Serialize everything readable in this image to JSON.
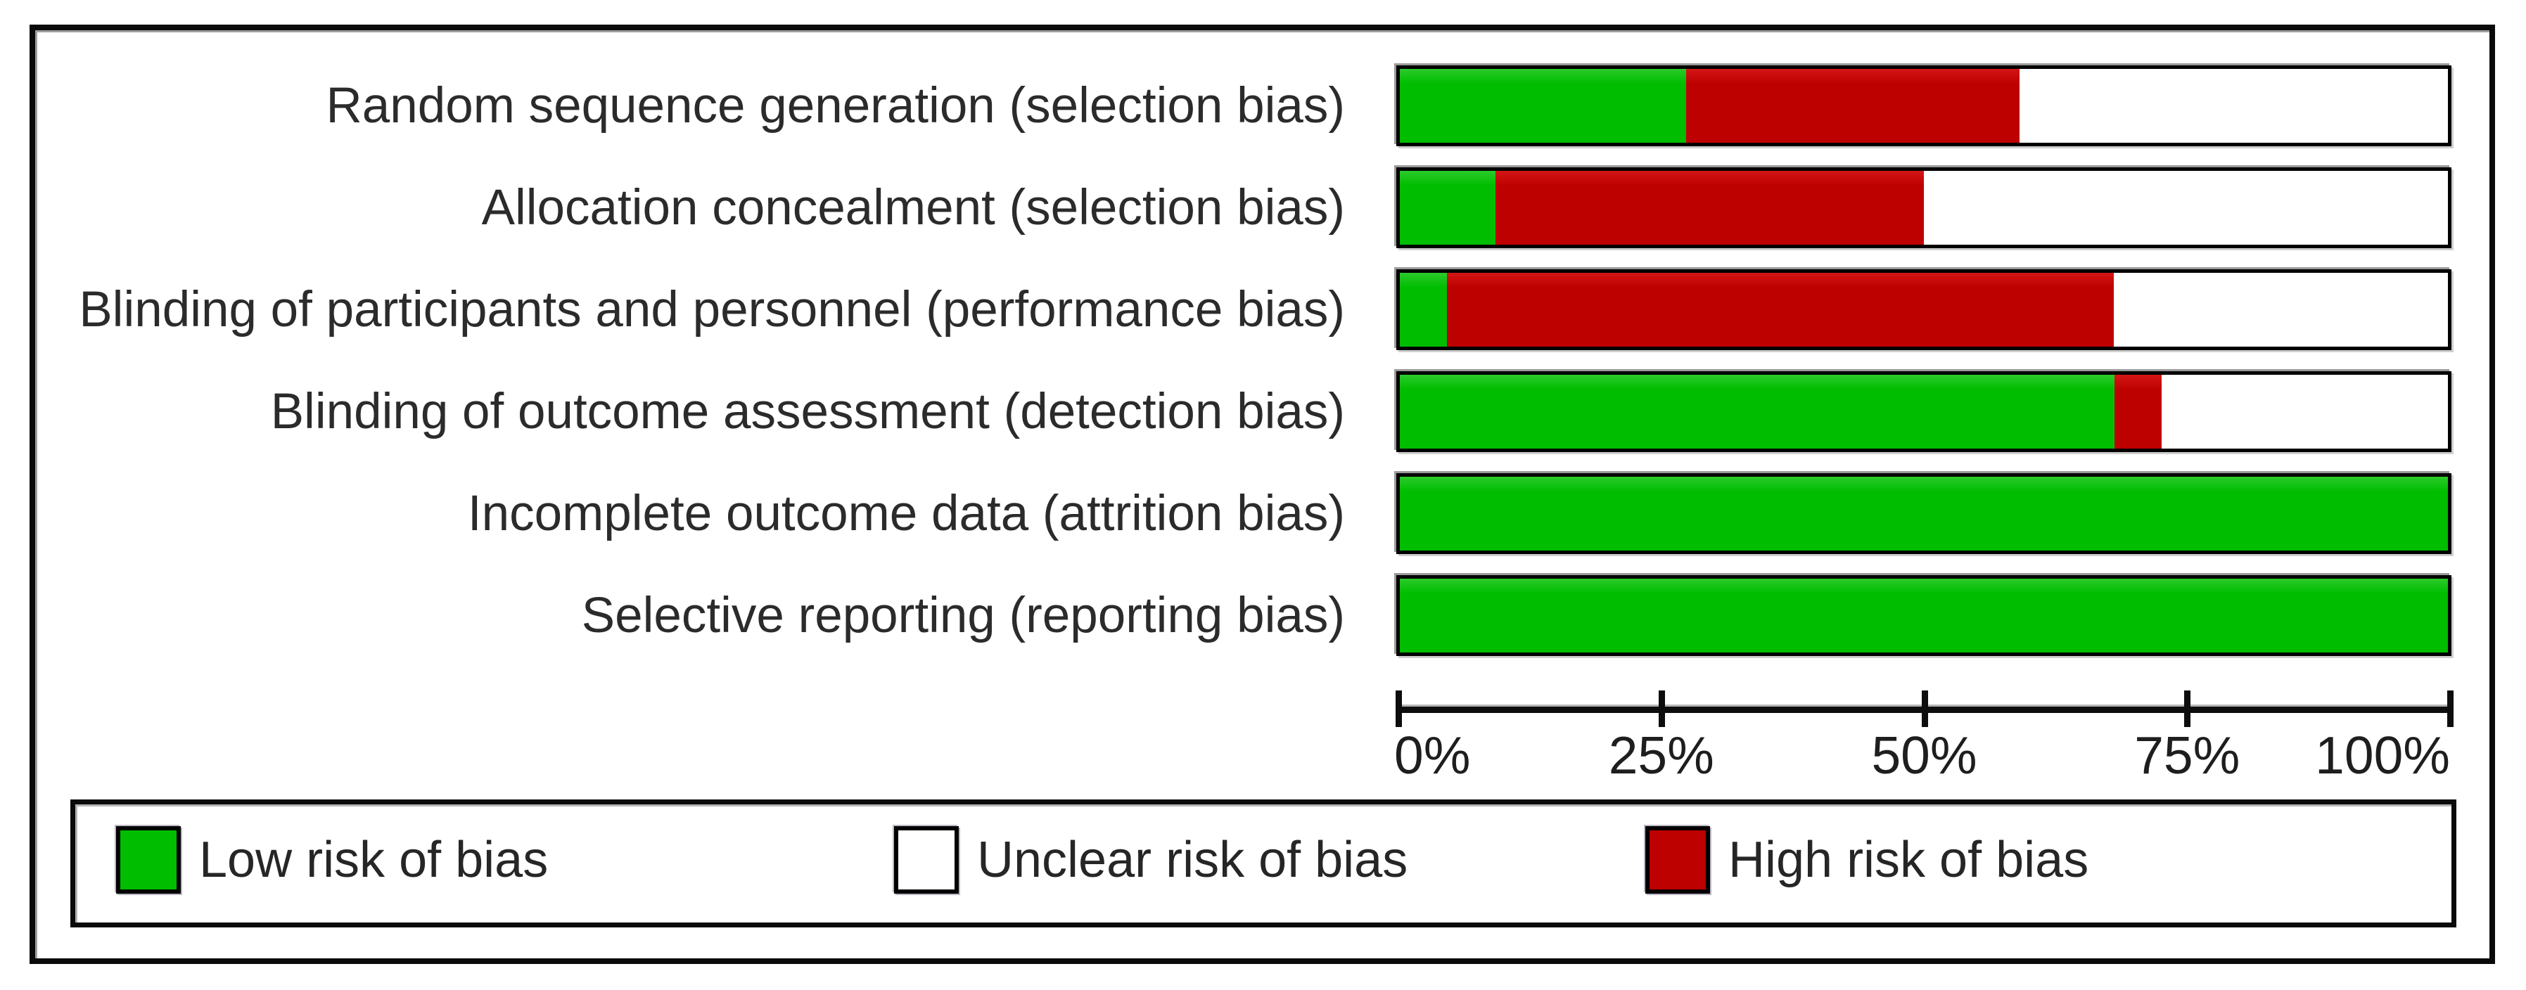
{
  "chart_data": {
    "type": "bar",
    "subtype": "horizontal-stacked-percentage",
    "title": "",
    "categories": [
      "Random sequence generation (selection bias)",
      "Allocation concealment (selection bias)",
      "Blinding of participants and personnel (performance bias)",
      "Blinding of outcome assessment (detection bias)",
      "Incomplete outcome data (attrition bias)",
      "Selective reporting (reporting bias)"
    ],
    "stack_order": [
      "low",
      "high",
      "unclear"
    ],
    "series": [
      {
        "key": "low",
        "name": "Low risk of bias",
        "color": "#00bd00",
        "values": [
          27.3,
          9.1,
          4.5,
          68.2,
          100,
          100
        ]
      },
      {
        "key": "high",
        "name": "High risk of bias",
        "color": "#bd0000",
        "values": [
          31.8,
          40.9,
          63.6,
          4.5,
          0,
          0
        ]
      },
      {
        "key": "unclear",
        "name": "Unclear risk of bias",
        "color": "#ffffff",
        "values": [
          40.9,
          50.0,
          31.9,
          27.3,
          0,
          0
        ]
      }
    ],
    "x_axis": {
      "range": [
        0,
        100
      ],
      "tick_labels": [
        "0%",
        "25%",
        "50%",
        "75%",
        "100%"
      ],
      "tick_values": [
        0,
        25,
        50,
        75,
        100
      ],
      "grid": false
    },
    "legend": {
      "position": "bottom-box",
      "items": [
        {
          "key": "low",
          "label": "Low risk of bias",
          "color": "#00bd00"
        },
        {
          "key": "unclear",
          "label": "Unclear risk of bias",
          "color": "#ffffff"
        },
        {
          "key": "high",
          "label": "High risk of bias",
          "color": "#bd0000"
        }
      ]
    },
    "colors": {
      "low": "#00bd00",
      "high": "#bd0000",
      "unclear": "#ffffff",
      "border": "#000000"
    }
  },
  "layout_note_values_are_percent": true
}
